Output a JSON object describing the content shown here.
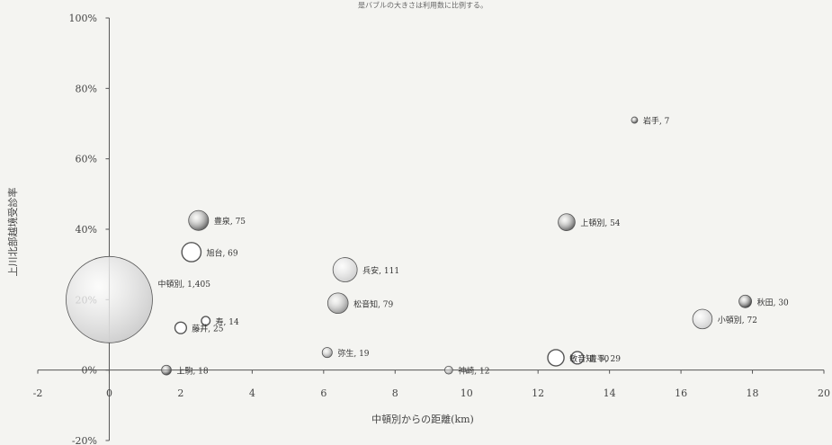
{
  "header_note": "是バブルの大きさは利用数に比例する。",
  "chart_data": {
    "type": "scatter",
    "subtype": "bubble",
    "xlabel": "中頓別からの距離(km)",
    "ylabel": "上川北部越境受診率",
    "xlim": [
      -2,
      20
    ],
    "ylim": [
      -20,
      100
    ],
    "x_ticks": [
      "-2",
      "0",
      "2",
      "4",
      "6",
      "8",
      "10",
      "12",
      "14",
      "16",
      "18",
      "20"
    ],
    "y_ticks": [
      "100%",
      "80%",
      "60%",
      "40%",
      "20%",
      "0%",
      "-20%"
    ],
    "grid": false,
    "points": [
      {
        "name": "中頓別",
        "label": "中頓別, 1,405",
        "x": 0,
        "y": 20,
        "size": 1405,
        "style": "light"
      },
      {
        "name": "豊泉",
        "label": "豊泉, 75",
        "x": 2.5,
        "y": 42.5,
        "size": 75,
        "style": "dark"
      },
      {
        "name": "旭台",
        "label": "旭台, 69",
        "x": 2.3,
        "y": 33.5,
        "size": 69,
        "style": "hollow"
      },
      {
        "name": "寿",
        "label": "寿, 14",
        "x": 2.7,
        "y": 14,
        "size": 14,
        "style": "hollow"
      },
      {
        "name": "藤井",
        "label": "藤井, 25",
        "x": 2,
        "y": 12,
        "size": 25,
        "style": "hollow"
      },
      {
        "name": "上駒",
        "label": "上駒, 18",
        "x": 1.6,
        "y": 0,
        "size": 18,
        "style": "black"
      },
      {
        "name": "兵安",
        "label": "兵安, 111",
        "x": 6.6,
        "y": 28.5,
        "size": 111,
        "style": "light"
      },
      {
        "name": "松音知",
        "label": "松音知, 79",
        "x": 6.4,
        "y": 19,
        "size": 79,
        "style": "mid"
      },
      {
        "name": "弥生",
        "label": "弥生, 19",
        "x": 6.1,
        "y": 5,
        "size": 19,
        "style": "mid"
      },
      {
        "name": "神崎",
        "label": "神崎, 12",
        "x": 9.5,
        "y": 0,
        "size": 12,
        "style": "mid"
      },
      {
        "name": "敏音知",
        "label": "敏音知, 50",
        "x": 12.5,
        "y": 3.5,
        "size": 50,
        "style": "hollow"
      },
      {
        "name": "豊平",
        "label": "豊平, 29",
        "x": 13.1,
        "y": 3.5,
        "size": 29,
        "style": "hollow"
      },
      {
        "name": "上頓別",
        "label": "上頓別, 54",
        "x": 12.8,
        "y": 42,
        "size": 54,
        "style": "dark"
      },
      {
        "name": "岩手",
        "label": "岩手, 7",
        "x": 14.7,
        "y": 71,
        "size": 7,
        "style": "black"
      },
      {
        "name": "小頓別",
        "label": "小頓別, 72",
        "x": 16.6,
        "y": 14.5,
        "size": 72,
        "style": "light"
      },
      {
        "name": "秋田",
        "label": "秋田, 30",
        "x": 17.8,
        "y": 19.5,
        "size": 30,
        "style": "black"
      }
    ]
  },
  "colors": {
    "background": "#f4f4f1",
    "axis": "#555555",
    "light": "#cdcdcd",
    "mid": "#8e8e8e",
    "dark": "#5a5a5a",
    "black": "#2e2e2e",
    "hollow": "#ffffff",
    "outline": "#555555"
  }
}
